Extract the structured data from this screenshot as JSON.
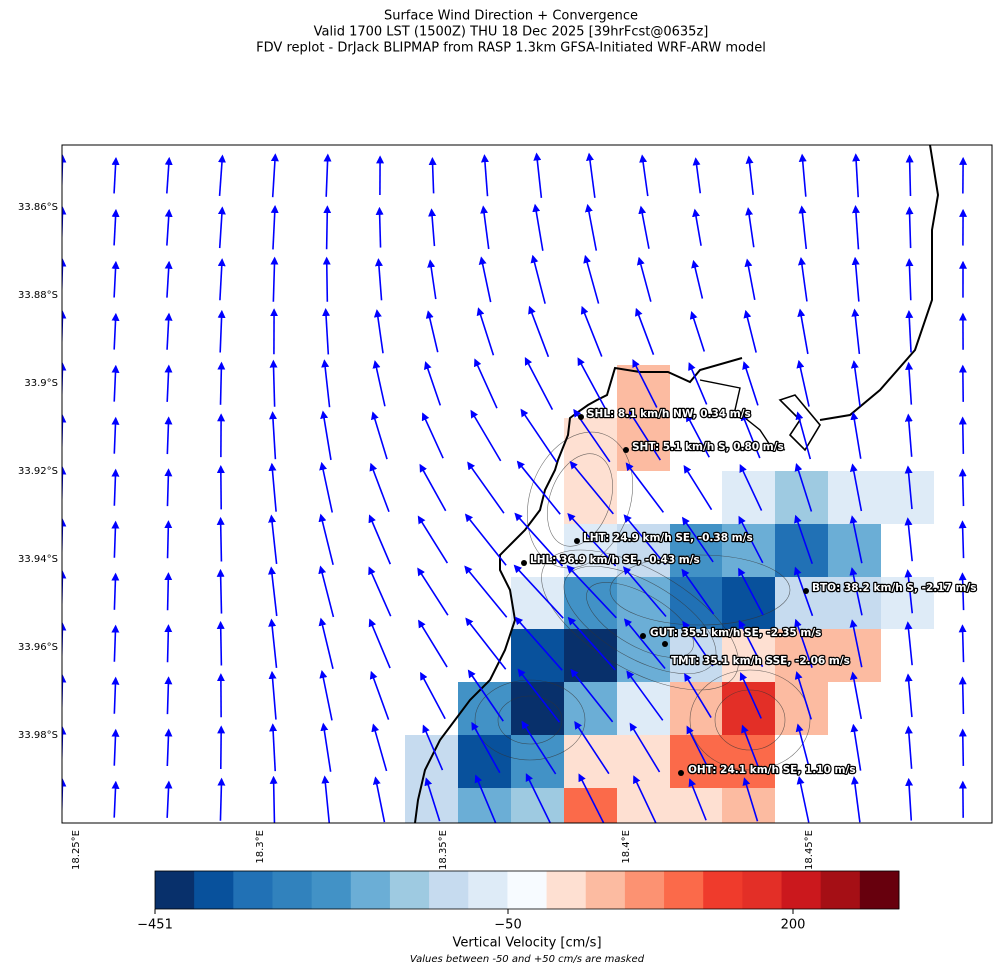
{
  "header": {
    "title_lines": [
      "Surface Wind Direction + Convergence",
      "Valid 1700 LST (1500Z) THU 18 Dec 2025 [39hrFcst@0635z]",
      "FDV replot - DrJack BLIPMAP from RASP 1.3km GFSA-Initiated WRF-ARW model"
    ]
  },
  "map": {
    "lat_ticks": [
      "33.86°S",
      "33.88°S",
      "33.9°S",
      "33.92°S",
      "33.94°S",
      "33.96°S",
      "33.98°S"
    ],
    "lon_ticks": [
      "18.25°E",
      "18.3°E",
      "18.35°E",
      "18.4°E",
      "18.45°E"
    ]
  },
  "stations": [
    {
      "label": "SHL: 8.1 km/h NW, 0.34 m/s"
    },
    {
      "label": "SHT: 5.1 km/h S, 0.80 m/s"
    },
    {
      "label": "LHT: 24.9 km/h SE, -0.38 m/s"
    },
    {
      "label": "LHL: 36.9 km/h SE, -0.43 m/s"
    },
    {
      "label": "BTO: 38.2 km/h S, -2.17 m/s"
    },
    {
      "label": "GUT: 35.1 km/h SE, -2.35 m/s"
    },
    {
      "label": "TMT: 35.1 km/h SSE, -2.06 m/s"
    },
    {
      "label": "OHT: 24.1 km/h SE, 1.10 m/s"
    }
  ],
  "colorbar": {
    "ticks": [
      "−451",
      "−50",
      "200"
    ],
    "label": "Vertical Velocity [cm/s]",
    "note": "Values between -50 and +50 cm/s are masked"
  }
}
